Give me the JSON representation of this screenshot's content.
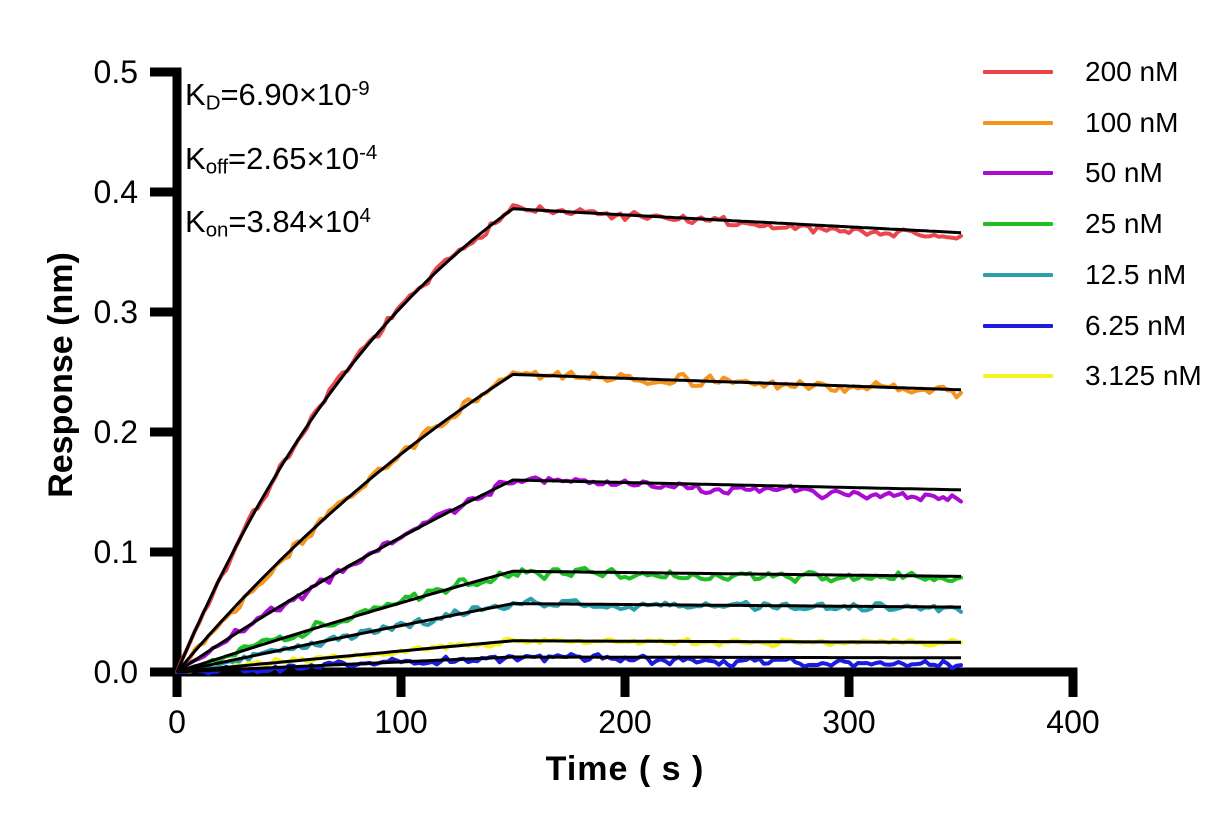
{
  "chart_data": {
    "type": "line",
    "title": "",
    "xlabel": "Time ( s )",
    "ylabel": "Response (nm)",
    "xlim": [
      0,
      400
    ],
    "ylim": [
      0,
      0.5
    ],
    "xticks": [
      "0",
      "100",
      "200",
      "300",
      "400"
    ],
    "yticks": [
      "0.0",
      "0.1",
      "0.2",
      "0.3",
      "0.4",
      "0.5"
    ],
    "grid": "off",
    "legend_position": "right-outside",
    "association_end_s": 150,
    "dissociation_end_s": 350,
    "fit_line_color": "#000000",
    "kinetics_values": {
      "KD": "6.90e-9",
      "Koff": 0.000265,
      "Kon": 38400
    },
    "kinetics_display": [
      {
        "base": "K",
        "sub": "D",
        "mid": "=6.90×10",
        "sup": "-9"
      },
      {
        "base": "K",
        "sub": "off",
        "mid": "=2.65×10",
        "sup": "-4"
      },
      {
        "base": "K",
        "sub": "on",
        "mid": "=3.84×10",
        "sup": "4"
      }
    ],
    "series": [
      {
        "label": "200 nM",
        "conc_nM": 200,
        "color": "#EA464B",
        "peak_nm": 0.386,
        "kobs_per_s": 0.00795,
        "end_drift_nm": -0.004,
        "noise_nm": 0.0042,
        "seed": 7
      },
      {
        "label": "100 nM",
        "conc_nM": 100,
        "color": "#F7941E",
        "peak_nm": 0.248,
        "kobs_per_s": 0.004105,
        "end_drift_nm": -0.001,
        "noise_nm": 0.0048,
        "seed": 13
      },
      {
        "label": "50 nM",
        "conc_nM": 50,
        "color": "#A90BD3",
        "peak_nm": 0.16,
        "kobs_per_s": 0.002185,
        "end_drift_nm": -0.006,
        "noise_nm": 0.0045,
        "seed": 21
      },
      {
        "label": "25 nM",
        "conc_nM": 25,
        "color": "#1FBF26",
        "peak_nm": 0.084,
        "kobs_per_s": 0.001225,
        "end_drift_nm": -0.003,
        "noise_nm": 0.0048,
        "seed": 34
      },
      {
        "label": "12.5 nM",
        "conc_nM": 12.5,
        "color": "#2C9FAB",
        "peak_nm": 0.057,
        "kobs_per_s": 0.000745,
        "end_drift_nm": -0.001,
        "noise_nm": 0.004,
        "seed": 55
      },
      {
        "label": "6.25 nM",
        "conc_nM": 6.25,
        "color": "#1C1CE0",
        "peak_nm": 0.0125,
        "kobs_per_s": 0.000505,
        "end_drift_nm": -0.006,
        "noise_nm": 0.004,
        "seed": 89
      },
      {
        "label": "3.125 nM",
        "conc_nM": 3.125,
        "color": "#F6F222",
        "peak_nm": 0.026,
        "kobs_per_s": 0.000385,
        "end_drift_nm": -0.001,
        "noise_nm": 0.0032,
        "seed": 144
      }
    ]
  }
}
